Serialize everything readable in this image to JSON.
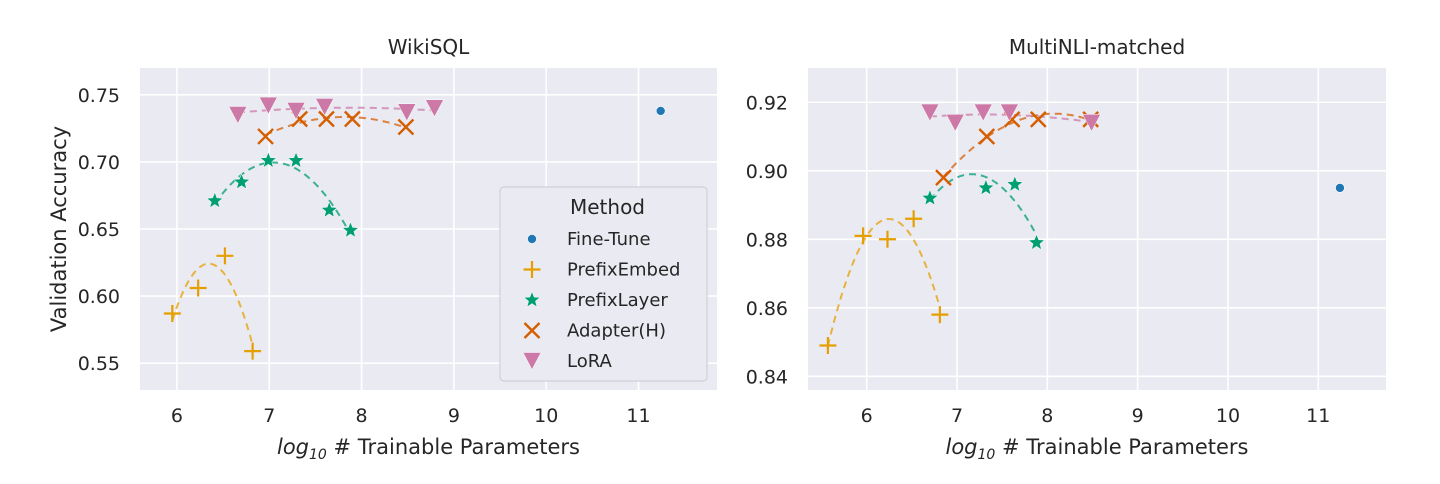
{
  "chart_data": [
    {
      "type": "scatter",
      "title": "WikiSQL",
      "xlabel_prefix": "log",
      "xlabel_sub": "10",
      "xlabel_rest": " # Trainable Parameters",
      "ylabel": "Validation Accuracy",
      "xlim": [
        5.6,
        11.85
      ],
      "ylim": [
        0.53,
        0.77
      ],
      "xticks": [
        6,
        7,
        8,
        9,
        10,
        11
      ],
      "yticks": [
        0.55,
        0.6,
        0.65,
        0.7,
        0.75
      ],
      "ytick_labels": [
        "0.55",
        "0.60",
        "0.65",
        "0.70",
        "0.75"
      ],
      "grid": true,
      "series": [
        {
          "name": "Fine-Tune",
          "marker": "circle",
          "color": "#1f77b4",
          "x": [
            11.24
          ],
          "y": [
            0.738
          ]
        },
        {
          "name": "PrefixEmbed",
          "marker": "plus",
          "color": "#e69f00",
          "x": [
            5.95,
            6.23,
            6.52,
            6.82
          ],
          "y": [
            0.587,
            0.606,
            0.63,
            0.559
          ]
        },
        {
          "name": "PrefixLayer",
          "marker": "star",
          "color": "#009e73",
          "x": [
            6.41,
            6.7,
            6.99,
            7.29,
            7.65,
            7.88
          ],
          "y": [
            0.671,
            0.685,
            0.701,
            0.701,
            0.664,
            0.649
          ]
        },
        {
          "name": "Adapter(H)",
          "marker": "x",
          "color": "#d55e00",
          "x": [
            6.96,
            7.33,
            7.62,
            7.9,
            8.48
          ],
          "y": [
            0.719,
            0.732,
            0.732,
            0.732,
            0.726
          ]
        },
        {
          "name": "LoRA",
          "marker": "triangle-down",
          "color": "#cc79a7",
          "x": [
            6.66,
            6.99,
            7.29,
            7.6,
            8.49,
            8.79
          ],
          "y": [
            0.735,
            0.742,
            0.738,
            0.741,
            0.737,
            0.74
          ]
        }
      ]
    },
    {
      "type": "scatter",
      "title": "MultiNLI-matched",
      "xlabel_prefix": "log",
      "xlabel_sub": "10",
      "xlabel_rest": " # Trainable Parameters",
      "ylabel": "",
      "xlim": [
        5.35,
        11.75
      ],
      "ylim": [
        0.836,
        0.93
      ],
      "xticks": [
        6,
        7,
        8,
        9,
        10,
        11
      ],
      "yticks": [
        0.84,
        0.86,
        0.88,
        0.9,
        0.92
      ],
      "ytick_labels": [
        "0.84",
        "0.86",
        "0.88",
        "0.90",
        "0.92"
      ],
      "grid": true,
      "series": [
        {
          "name": "Fine-Tune",
          "marker": "circle",
          "color": "#1f77b4",
          "x": [
            11.24
          ],
          "y": [
            0.895
          ]
        },
        {
          "name": "PrefixEmbed",
          "marker": "plus",
          "color": "#e69f00",
          "x": [
            5.57,
            5.96,
            6.23,
            6.52,
            6.81
          ],
          "y": [
            0.849,
            0.881,
            0.88,
            0.886,
            0.858
          ]
        },
        {
          "name": "PrefixLayer",
          "marker": "star",
          "color": "#009e73",
          "x": [
            6.7,
            7.32,
            7.64,
            7.88
          ],
          "y": [
            0.892,
            0.895,
            0.896,
            0.879
          ]
        },
        {
          "name": "Adapter(H)",
          "marker": "x",
          "color": "#d55e00",
          "x": [
            6.85,
            7.33,
            7.61,
            7.9,
            8.48
          ],
          "y": [
            0.898,
            0.91,
            0.915,
            0.915,
            0.915
          ]
        },
        {
          "name": "LoRA",
          "marker": "triangle-down",
          "color": "#cc79a7",
          "x": [
            6.7,
            6.98,
            7.29,
            7.58,
            8.49
          ],
          "y": [
            0.917,
            0.914,
            0.917,
            0.917,
            0.914
          ]
        }
      ]
    }
  ],
  "legend": {
    "title": "Method",
    "placement": "center-right of left panel",
    "items": [
      "Fine-Tune",
      "PrefixEmbed",
      "PrefixLayer",
      "Adapter(H)",
      "LoRA"
    ]
  }
}
